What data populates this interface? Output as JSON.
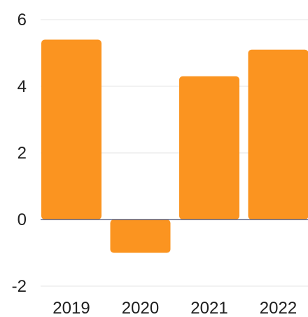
{
  "chart_data": {
    "type": "bar",
    "categories": [
      "2019",
      "2020",
      "2021",
      "2022"
    ],
    "values": [
      5.4,
      -1.0,
      4.3,
      5.1
    ],
    "title": "",
    "xlabel": "",
    "ylabel": "",
    "ylim": [
      -2,
      6
    ],
    "yticks": [
      "6",
      "4",
      "2",
      "0",
      "-2"
    ],
    "grid": true,
    "legend": "none",
    "colors": {
      "bar": "#fb9420",
      "grid": "#e6e6e6",
      "zero_line": "#3f4a73",
      "text": "#1f1f1f"
    }
  }
}
